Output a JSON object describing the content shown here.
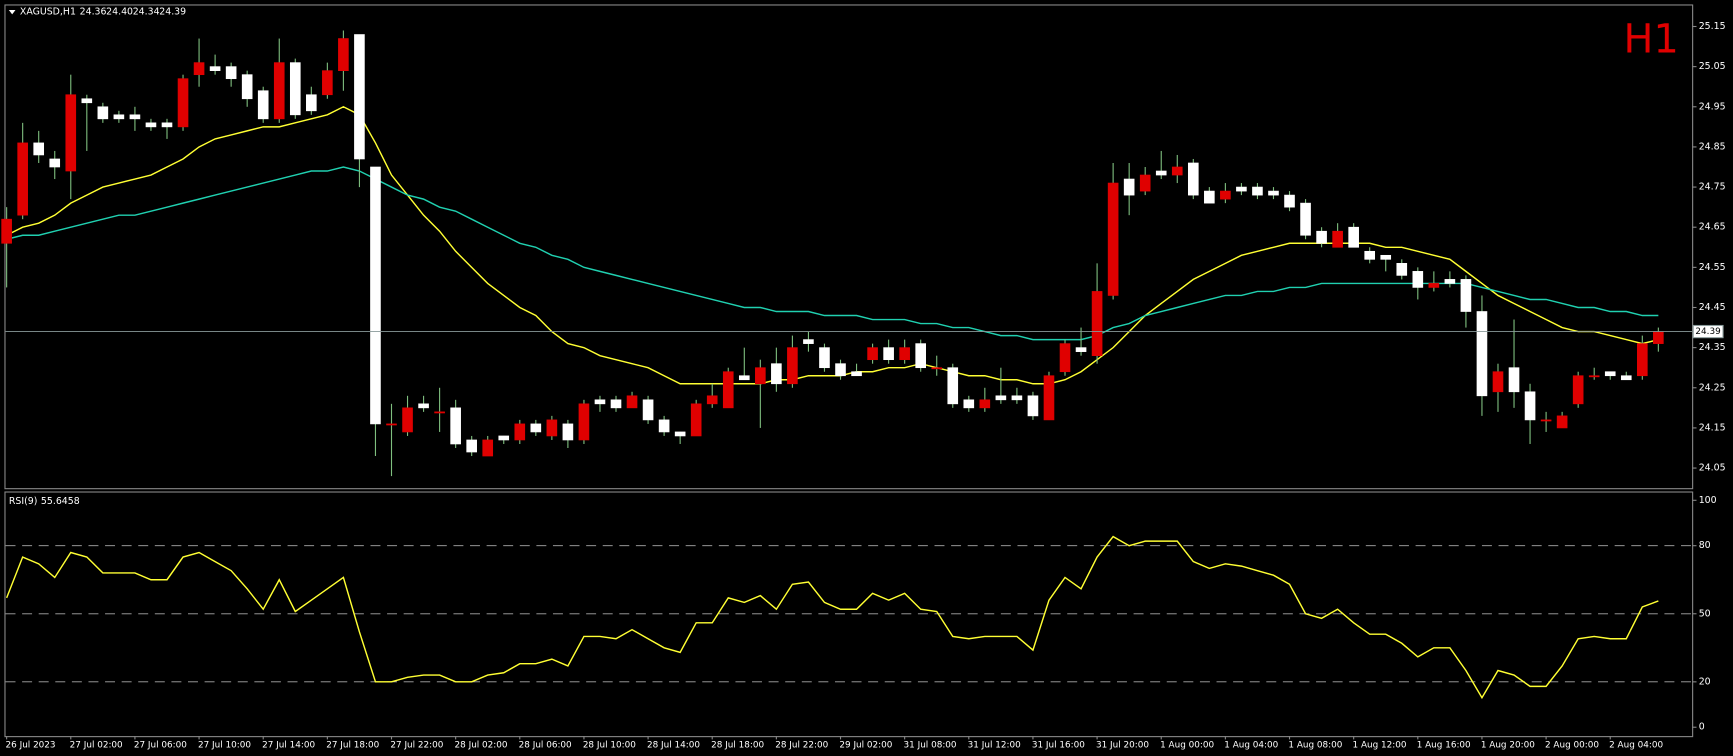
{
  "chart_data": [
    {
      "type": "candlestick",
      "title": "XAGUSD,H1",
      "ohlc_labels": [
        "24.36",
        "24.40",
        "24.34",
        "24.39"
      ],
      "annotation": "H1",
      "categories": [
        "26 Jul 2023",
        null,
        null,
        null,
        "27 Jul 02:00",
        null,
        null,
        null,
        "27 Jul 06:00",
        null,
        null,
        null,
        "27 Jul 10:00",
        null,
        null,
        null,
        "27 Jul 14:00",
        null,
        null,
        null,
        "27 Jul 18:00",
        null,
        null,
        null,
        "27 Jul 22:00",
        null,
        null,
        null,
        "28 Jul 02:00",
        null,
        null,
        null,
        "28 Jul 06:00",
        null,
        null,
        null,
        "28 Jul 10:00",
        null,
        null,
        null,
        "28 Jul 14:00",
        null,
        null,
        null,
        "28 Jul 18:00",
        null,
        null,
        null,
        "28 Jul 22:00",
        null,
        null,
        null,
        "29 Jul 02:00",
        null,
        null,
        null,
        "31 Jul 08:00",
        null,
        null,
        null,
        "31 Jul 12:00",
        null,
        null,
        null,
        "31 Jul 16:00",
        null,
        null,
        null,
        "31 Jul 20:00",
        null,
        null,
        null,
        "1 Aug 00:00",
        null,
        null,
        null,
        "1 Aug 04:00",
        null,
        null,
        null,
        "1 Aug 08:00",
        null,
        null,
        null,
        "1 Aug 12:00",
        null,
        null,
        null,
        "1 Aug 16:00",
        null,
        null,
        null,
        "1 Aug 20:00",
        null,
        null,
        null,
        "2 Aug 00:00",
        null,
        null,
        null,
        "2 Aug 04:00",
        null,
        null,
        null
      ],
      "open": [
        24.61,
        24.68,
        24.86,
        24.82,
        24.79,
        24.97,
        24.95,
        24.93,
        24.93,
        24.91,
        24.91,
        24.9,
        25.03,
        25.05,
        25.05,
        25.03,
        24.99,
        24.92,
        25.06,
        24.98,
        24.98,
        25.04,
        25.13,
        24.8,
        24.16,
        24.14,
        24.21,
        24.19,
        24.2,
        24.12,
        24.08,
        24.13,
        24.12,
        24.16,
        24.13,
        24.16,
        24.12,
        24.22,
        24.22,
        24.2,
        24.22,
        24.17,
        24.14,
        24.13,
        24.21,
        24.2,
        24.28,
        24.26,
        24.31,
        24.26,
        24.37,
        24.35,
        24.31,
        24.29,
        24.32,
        24.35,
        24.32,
        24.36,
        24.3,
        24.3,
        24.22,
        24.2,
        24.23,
        24.23,
        24.23,
        24.17,
        24.29,
        24.35,
        24.33,
        24.48,
        24.77,
        24.74,
        24.79,
        24.78,
        24.81,
        24.74,
        24.72,
        24.75,
        24.75,
        24.74,
        24.73,
        24.71,
        24.64,
        24.6,
        24.65,
        24.59,
        24.58,
        24.56,
        24.54,
        24.5,
        24.52,
        24.52,
        24.44,
        24.24,
        24.3,
        24.24,
        24.17,
        24.15,
        24.21,
        24.28,
        24.29,
        24.28,
        24.28,
        24.36
      ],
      "high": [
        24.7,
        24.91,
        24.89,
        24.84,
        25.03,
        24.98,
        24.96,
        24.94,
        24.95,
        24.92,
        24.92,
        25.03,
        25.12,
        25.08,
        25.06,
        25.04,
        25.0,
        25.12,
        25.07,
        25.0,
        25.06,
        25.14,
        25.13,
        24.8,
        24.21,
        24.23,
        24.23,
        24.25,
        24.22,
        24.13,
        24.13,
        24.13,
        24.17,
        24.17,
        24.18,
        24.17,
        24.22,
        24.23,
        24.23,
        24.24,
        24.23,
        24.18,
        24.14,
        24.22,
        24.26,
        24.3,
        24.35,
        24.32,
        24.35,
        24.38,
        24.39,
        24.36,
        24.32,
        24.31,
        24.36,
        24.37,
        24.37,
        24.37,
        24.33,
        24.31,
        24.23,
        24.25,
        24.3,
        24.25,
        24.24,
        24.29,
        24.37,
        24.4,
        24.56,
        24.81,
        24.81,
        24.8,
        24.84,
        24.83,
        24.82,
        24.75,
        24.76,
        24.76,
        24.76,
        24.75,
        24.74,
        24.72,
        24.65,
        24.66,
        24.66,
        24.6,
        24.58,
        24.57,
        24.55,
        24.54,
        24.54,
        24.53,
        24.48,
        24.31,
        24.42,
        24.26,
        24.19,
        24.19,
        24.29,
        24.3,
        24.29,
        24.29,
        24.38,
        24.4
      ],
      "low": [
        24.5,
        24.67,
        24.81,
        24.77,
        24.72,
        24.84,
        24.91,
        24.91,
        24.89,
        24.89,
        24.87,
        24.89,
        25.0,
        25.03,
        25.0,
        24.95,
        24.91,
        24.91,
        24.92,
        24.93,
        24.97,
        24.99,
        24.75,
        24.08,
        24.03,
        24.13,
        24.19,
        24.14,
        24.1,
        24.08,
        24.08,
        24.11,
        24.11,
        24.13,
        24.12,
        24.1,
        24.11,
        24.19,
        24.19,
        24.2,
        24.16,
        24.13,
        24.11,
        24.13,
        24.2,
        24.2,
        24.27,
        24.15,
        24.24,
        24.25,
        24.34,
        24.29,
        24.27,
        24.28,
        24.31,
        24.31,
        24.31,
        24.29,
        24.28,
        24.2,
        24.19,
        24.19,
        24.21,
        24.21,
        24.17,
        24.17,
        24.28,
        24.33,
        24.31,
        24.47,
        24.68,
        24.73,
        24.77,
        24.76,
        24.72,
        24.71,
        24.71,
        24.73,
        24.72,
        24.72,
        24.69,
        24.62,
        24.6,
        24.6,
        24.6,
        24.56,
        24.54,
        24.52,
        24.47,
        24.49,
        24.5,
        24.4,
        24.18,
        24.19,
        24.2,
        24.11,
        24.14,
        24.15,
        24.2,
        24.27,
        24.27,
        24.27,
        24.27,
        24.34
      ],
      "close": [
        24.67,
        24.86,
        24.83,
        24.8,
        24.98,
        24.96,
        24.92,
        24.92,
        24.92,
        24.9,
        24.9,
        25.02,
        25.06,
        25.04,
        25.02,
        24.97,
        24.92,
        25.06,
        24.93,
        24.94,
        25.04,
        25.12,
        24.82,
        24.16,
        24.16,
        24.2,
        24.2,
        24.19,
        24.11,
        24.09,
        24.12,
        24.12,
        24.16,
        24.14,
        24.17,
        24.12,
        24.21,
        24.21,
        24.2,
        24.23,
        24.17,
        24.14,
        24.13,
        24.21,
        24.23,
        24.29,
        24.27,
        24.3,
        24.26,
        24.35,
        24.36,
        24.3,
        24.28,
        24.28,
        24.35,
        24.32,
        24.35,
        24.3,
        24.3,
        24.21,
        24.2,
        24.22,
        24.22,
        24.22,
        24.18,
        24.28,
        24.36,
        24.34,
        24.49,
        24.76,
        24.73,
        24.78,
        24.78,
        24.8,
        24.73,
        24.71,
        24.74,
        24.74,
        24.73,
        24.73,
        24.7,
        24.63,
        24.61,
        24.64,
        24.6,
        24.57,
        24.57,
        24.53,
        24.5,
        24.51,
        24.51,
        24.44,
        24.23,
        24.29,
        24.24,
        24.17,
        24.17,
        24.18,
        24.28,
        24.28,
        24.28,
        24.27,
        24.36,
        24.39
      ],
      "bull_color": "#e00000",
      "bear_color": "#ffffff",
      "wick_color": "#7fbf7f",
      "series": [
        {
          "color": "#ffff33",
          "values": [
            24.63,
            24.65,
            24.66,
            24.68,
            24.71,
            24.73,
            24.75,
            24.76,
            24.77,
            24.78,
            24.8,
            24.82,
            24.85,
            24.87,
            24.88,
            24.89,
            24.9,
            24.9,
            24.91,
            24.92,
            24.93,
            24.95,
            24.93,
            24.86,
            24.78,
            24.73,
            24.68,
            24.64,
            24.59,
            24.55,
            24.51,
            24.48,
            24.45,
            24.43,
            24.39,
            24.36,
            24.35,
            24.33,
            24.32,
            24.31,
            24.3,
            24.28,
            24.26,
            24.26,
            24.26,
            24.26,
            24.26,
            24.26,
            24.27,
            24.27,
            24.28,
            24.28,
            24.28,
            24.29,
            24.29,
            24.3,
            24.3,
            24.31,
            24.3,
            24.29,
            24.28,
            24.28,
            24.27,
            24.27,
            24.26,
            24.26,
            24.27,
            24.29,
            24.32,
            24.35,
            24.39,
            24.43,
            24.46,
            24.49,
            24.52,
            24.54,
            24.56,
            24.58,
            24.59,
            24.6,
            24.61,
            24.61,
            24.61,
            24.61,
            24.61,
            24.61,
            24.6,
            24.6,
            24.59,
            24.58,
            24.57,
            24.54,
            24.51,
            24.48,
            24.46,
            24.44,
            24.42,
            24.4,
            24.39,
            24.39,
            24.38,
            24.37,
            24.36,
            24.37
          ]
        },
        {
          "color": "#20d0b0",
          "values": [
            24.62,
            24.63,
            24.63,
            24.64,
            24.65,
            24.66,
            24.67,
            24.68,
            24.68,
            24.69,
            24.7,
            24.71,
            24.72,
            24.73,
            24.74,
            24.75,
            24.76,
            24.77,
            24.78,
            24.79,
            24.79,
            24.8,
            24.79,
            24.77,
            24.75,
            24.73,
            24.72,
            24.7,
            24.69,
            24.67,
            24.65,
            24.63,
            24.61,
            24.6,
            24.58,
            24.57,
            24.55,
            24.54,
            24.53,
            24.52,
            24.51,
            24.5,
            24.49,
            24.48,
            24.47,
            24.46,
            24.45,
            24.45,
            24.44,
            24.44,
            24.44,
            24.43,
            24.43,
            24.43,
            24.42,
            24.42,
            24.42,
            24.41,
            24.41,
            24.4,
            24.4,
            24.39,
            24.38,
            24.38,
            24.37,
            24.37,
            24.37,
            24.37,
            24.38,
            24.4,
            24.41,
            24.43,
            24.44,
            24.45,
            24.46,
            24.47,
            24.48,
            24.48,
            24.49,
            24.49,
            24.5,
            24.5,
            24.51,
            24.51,
            24.51,
            24.51,
            24.51,
            24.51,
            24.51,
            24.51,
            24.51,
            24.51,
            24.5,
            24.49,
            24.48,
            24.47,
            24.47,
            24.46,
            24.45,
            24.45,
            24.44,
            24.44,
            24.43,
            24.43
          ]
        }
      ],
      "ylim": [
        24.0,
        25.205
      ],
      "yticks": [
        25.15,
        25.05,
        24.95,
        24.85,
        24.75,
        24.65,
        24.55,
        24.45,
        24.35,
        24.25,
        24.15,
        24.05
      ]
    },
    {
      "type": "line",
      "title": "RSI(9)",
      "color": "#ffff33",
      "values": [
        57,
        75,
        72,
        66,
        77,
        75,
        68,
        68,
        68,
        65,
        65,
        75,
        77,
        73,
        69,
        61,
        52,
        65,
        51,
        56,
        61,
        66,
        42,
        20,
        20,
        22,
        23,
        23,
        20,
        20,
        23,
        24,
        28,
        28,
        30,
        27,
        40,
        40,
        39,
        43,
        39,
        35,
        33,
        46,
        46,
        57,
        55,
        58,
        52,
        63,
        64,
        55,
        52,
        52,
        59,
        56,
        59,
        52,
        51,
        40,
        39,
        40,
        40,
        40,
        34,
        56,
        66,
        61,
        75,
        84,
        80,
        82,
        82,
        82,
        73,
        70,
        72,
        71,
        69,
        67,
        63,
        50,
        48,
        52,
        46,
        41,
        41,
        37,
        31,
        35,
        35,
        25,
        13,
        25,
        23,
        18,
        18,
        27,
        39,
        40,
        39,
        39,
        53,
        55.6458
      ],
      "ylim": [
        -3.9,
        103.9
      ],
      "yticks": [
        100,
        80,
        50,
        20,
        0
      ],
      "levels": [
        80,
        50,
        20
      ]
    }
  ]
}
